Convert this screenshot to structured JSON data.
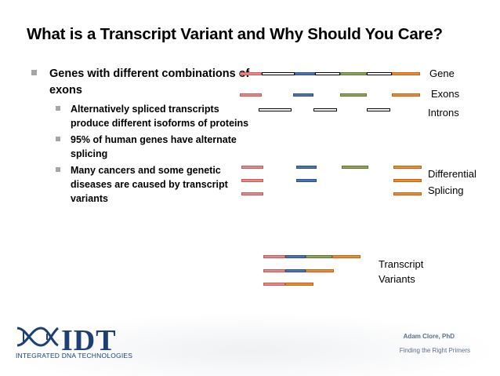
{
  "slide": {
    "title": "What is a Transcript Variant and Why Should You Care?"
  },
  "bullets": {
    "main": "Genes with different combinations of exons",
    "sub": [
      "Alternatively spliced transcripts produce different isoforms of proteins",
      "95% of human genes have alternate splicing",
      "Many cancers and some genetic diseases are caused by transcript variants"
    ]
  },
  "labels": {
    "gene": "Gene",
    "exons": "Exons",
    "introns": "Introns",
    "differential_line1": "Differential",
    "differential_line2": "Splicing",
    "transcript_line1": "Transcript",
    "transcript_line2": "Variants"
  },
  "colors": {
    "exon1": "#e88a8a",
    "exon2": "#4f74b3",
    "exon3": "#8fa756",
    "exon4": "#f08a35",
    "intron": "#000000"
  },
  "footer": {
    "logo_wordmark": "IDT",
    "logo_subtitle": "INTEGRATED DNA TECHNOLOGIES",
    "author": "Adam Clore, PhD",
    "subtitle": "Finding the Right Primers"
  }
}
